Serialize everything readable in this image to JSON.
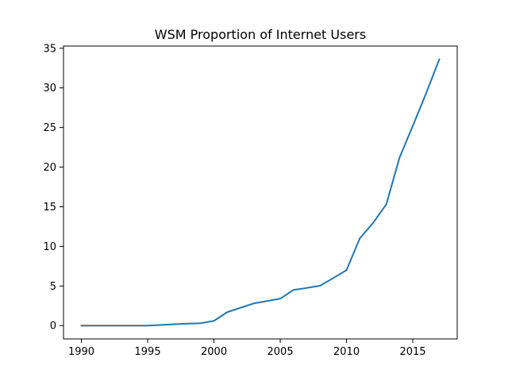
{
  "chart_data": {
    "type": "line",
    "title": "WSM Proportion of Internet Users",
    "xlabel": "",
    "ylabel": "",
    "xlim": [
      1988.65,
      2018.35
    ],
    "ylim": [
      -1.68,
      35.28
    ],
    "x_ticks": [
      "1990",
      "1995",
      "2000",
      "2005",
      "2010",
      "2015"
    ],
    "y_ticks": [
      "0",
      "5",
      "10",
      "15",
      "20",
      "25",
      "30",
      "35"
    ],
    "grid": false,
    "legend": "none",
    "series": [
      {
        "color": "#1f77b4",
        "x": [
          1990,
          1991,
          1992,
          1993,
          1994,
          1995,
          1996,
          1997,
          1998,
          1999,
          2000,
          2001,
          2002,
          2003,
          2004,
          2005,
          2006,
          2007,
          2008,
          2009,
          2010,
          2011,
          2012,
          2013,
          2014,
          2015,
          2016,
          2017
        ],
        "y": [
          0,
          0,
          0,
          0,
          0,
          0,
          0.08,
          0.17,
          0.25,
          0.3,
          0.6,
          1.7,
          2.25,
          2.8,
          3.1,
          3.4,
          4.5,
          4.75,
          5.03,
          6.0,
          7.0,
          11.0,
          12.95,
          15.3,
          21.2,
          25.2,
          29.3,
          33.6
        ]
      }
    ]
  }
}
